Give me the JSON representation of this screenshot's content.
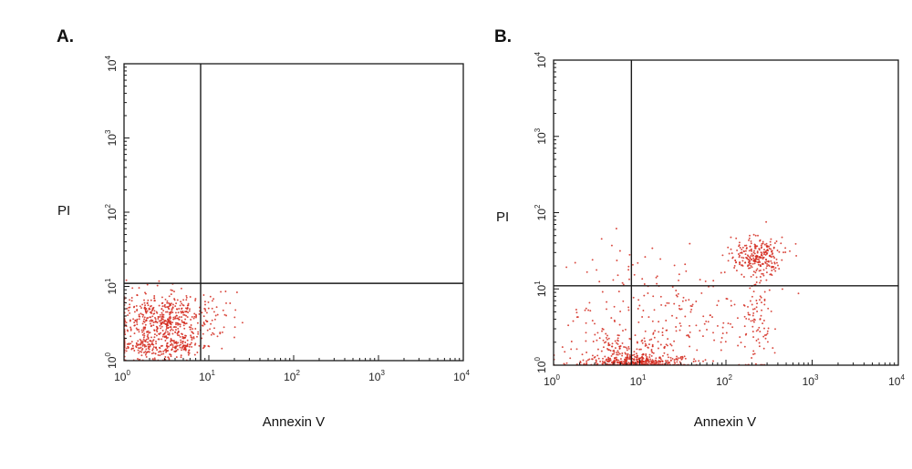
{
  "chart_data": [
    {
      "type": "scatter",
      "panel_label": "A.",
      "xlabel": "Annexin V",
      "ylabel": "PI",
      "x_scale": "log",
      "y_scale": "log",
      "xlim": [
        1,
        10000
      ],
      "ylim": [
        1,
        10000
      ],
      "x_ticks": [
        {
          "base": "10",
          "exp": "0"
        },
        {
          "base": "10",
          "exp": "1"
        },
        {
          "base": "10",
          "exp": "2"
        },
        {
          "base": "10",
          "exp": "3"
        },
        {
          "base": "10",
          "exp": "4"
        }
      ],
      "y_ticks": [
        {
          "base": "10",
          "exp": "0"
        },
        {
          "base": "10",
          "exp": "1"
        },
        {
          "base": "10",
          "exp": "2"
        },
        {
          "base": "10",
          "exp": "3"
        },
        {
          "base": "10",
          "exp": "4"
        }
      ],
      "gate": {
        "x": 8,
        "y": 11
      },
      "point_color": "#d42a1e",
      "clusters": [
        {
          "cx": 3,
          "cy": 3.5,
          "sx": 0.28,
          "sy": 0.17,
          "n": 520
        },
        {
          "cx": 2,
          "cy": 1.5,
          "sx": 0.28,
          "sy": 0.1,
          "n": 180
        },
        {
          "cx": 5,
          "cy": 1.6,
          "sx": 0.12,
          "sy": 0.05,
          "n": 70
        },
        {
          "cx": 14,
          "cy": 5,
          "sx": 0.2,
          "sy": 0.18,
          "n": 20
        }
      ]
    },
    {
      "type": "scatter",
      "panel_label": "B.",
      "xlabel": "Annexin V",
      "ylabel": "PI",
      "x_scale": "log",
      "y_scale": "log",
      "xlim": [
        1,
        10000
      ],
      "ylim": [
        1,
        10000
      ],
      "x_ticks": [
        {
          "base": "10",
          "exp": "0"
        },
        {
          "base": "10",
          "exp": "1"
        },
        {
          "base": "10",
          "exp": "2"
        },
        {
          "base": "10",
          "exp": "3"
        },
        {
          "base": "10",
          "exp": "4"
        }
      ],
      "y_ticks": [
        {
          "base": "10",
          "exp": "0"
        },
        {
          "base": "10",
          "exp": "1"
        },
        {
          "base": "10",
          "exp": "2"
        },
        {
          "base": "10",
          "exp": "3"
        },
        {
          "base": "10",
          "exp": "4"
        }
      ],
      "gate": {
        "x": 8,
        "y": 11
      },
      "point_color": "#d42a1e",
      "clusters": [
        {
          "cx": 9,
          "cy": 1.1,
          "sx": 0.3,
          "sy": 0.04,
          "n": 320
        },
        {
          "cx": 8,
          "cy": 1.6,
          "sx": 0.25,
          "sy": 0.14,
          "n": 160
        },
        {
          "cx": 230,
          "cy": 27,
          "sx": 0.15,
          "sy": 0.13,
          "n": 260
        },
        {
          "cx": 30,
          "cy": 5,
          "sx": 0.4,
          "sy": 0.35,
          "n": 140
        },
        {
          "cx": 220,
          "cy": 4,
          "sx": 0.1,
          "sy": 0.35,
          "n": 90
        },
        {
          "cx": 5,
          "cy": 20,
          "sx": 0.3,
          "sy": 0.25,
          "n": 25
        },
        {
          "cx": 3,
          "cy": 3,
          "sx": 0.25,
          "sy": 0.3,
          "n": 40
        }
      ]
    }
  ]
}
